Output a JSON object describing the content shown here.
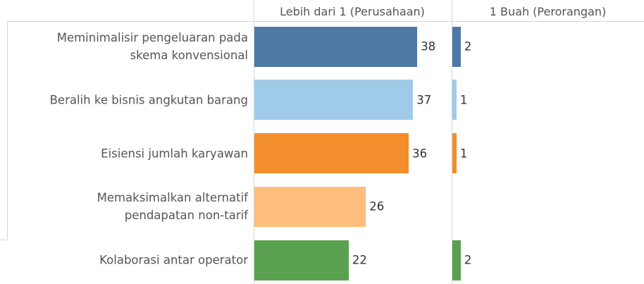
{
  "chart_data": {
    "type": "bar",
    "categories": [
      "Meminimalisir pengeluaran pada\nskema konvensional",
      "Beralih ke bisnis angkutan barang",
      "Eisiensi jumlah karyawan",
      "Memaksimalkan alternatif\npendapatan non-tarif",
      "Kolaborasi antar operator"
    ],
    "colors": [
      "#4e79a7",
      "#a0cbe8",
      "#f28e2b",
      "#ffbe7d",
      "#59a14f"
    ],
    "xlim": [
      0,
      46
    ],
    "panels": [
      {
        "title": "Lebih dari 1 (Perusahaan)",
        "values": [
          38,
          37,
          36,
          26,
          22
        ]
      },
      {
        "title": "1 Buah (Perorangan)",
        "values": [
          2,
          1,
          1,
          null,
          2
        ]
      }
    ]
  }
}
